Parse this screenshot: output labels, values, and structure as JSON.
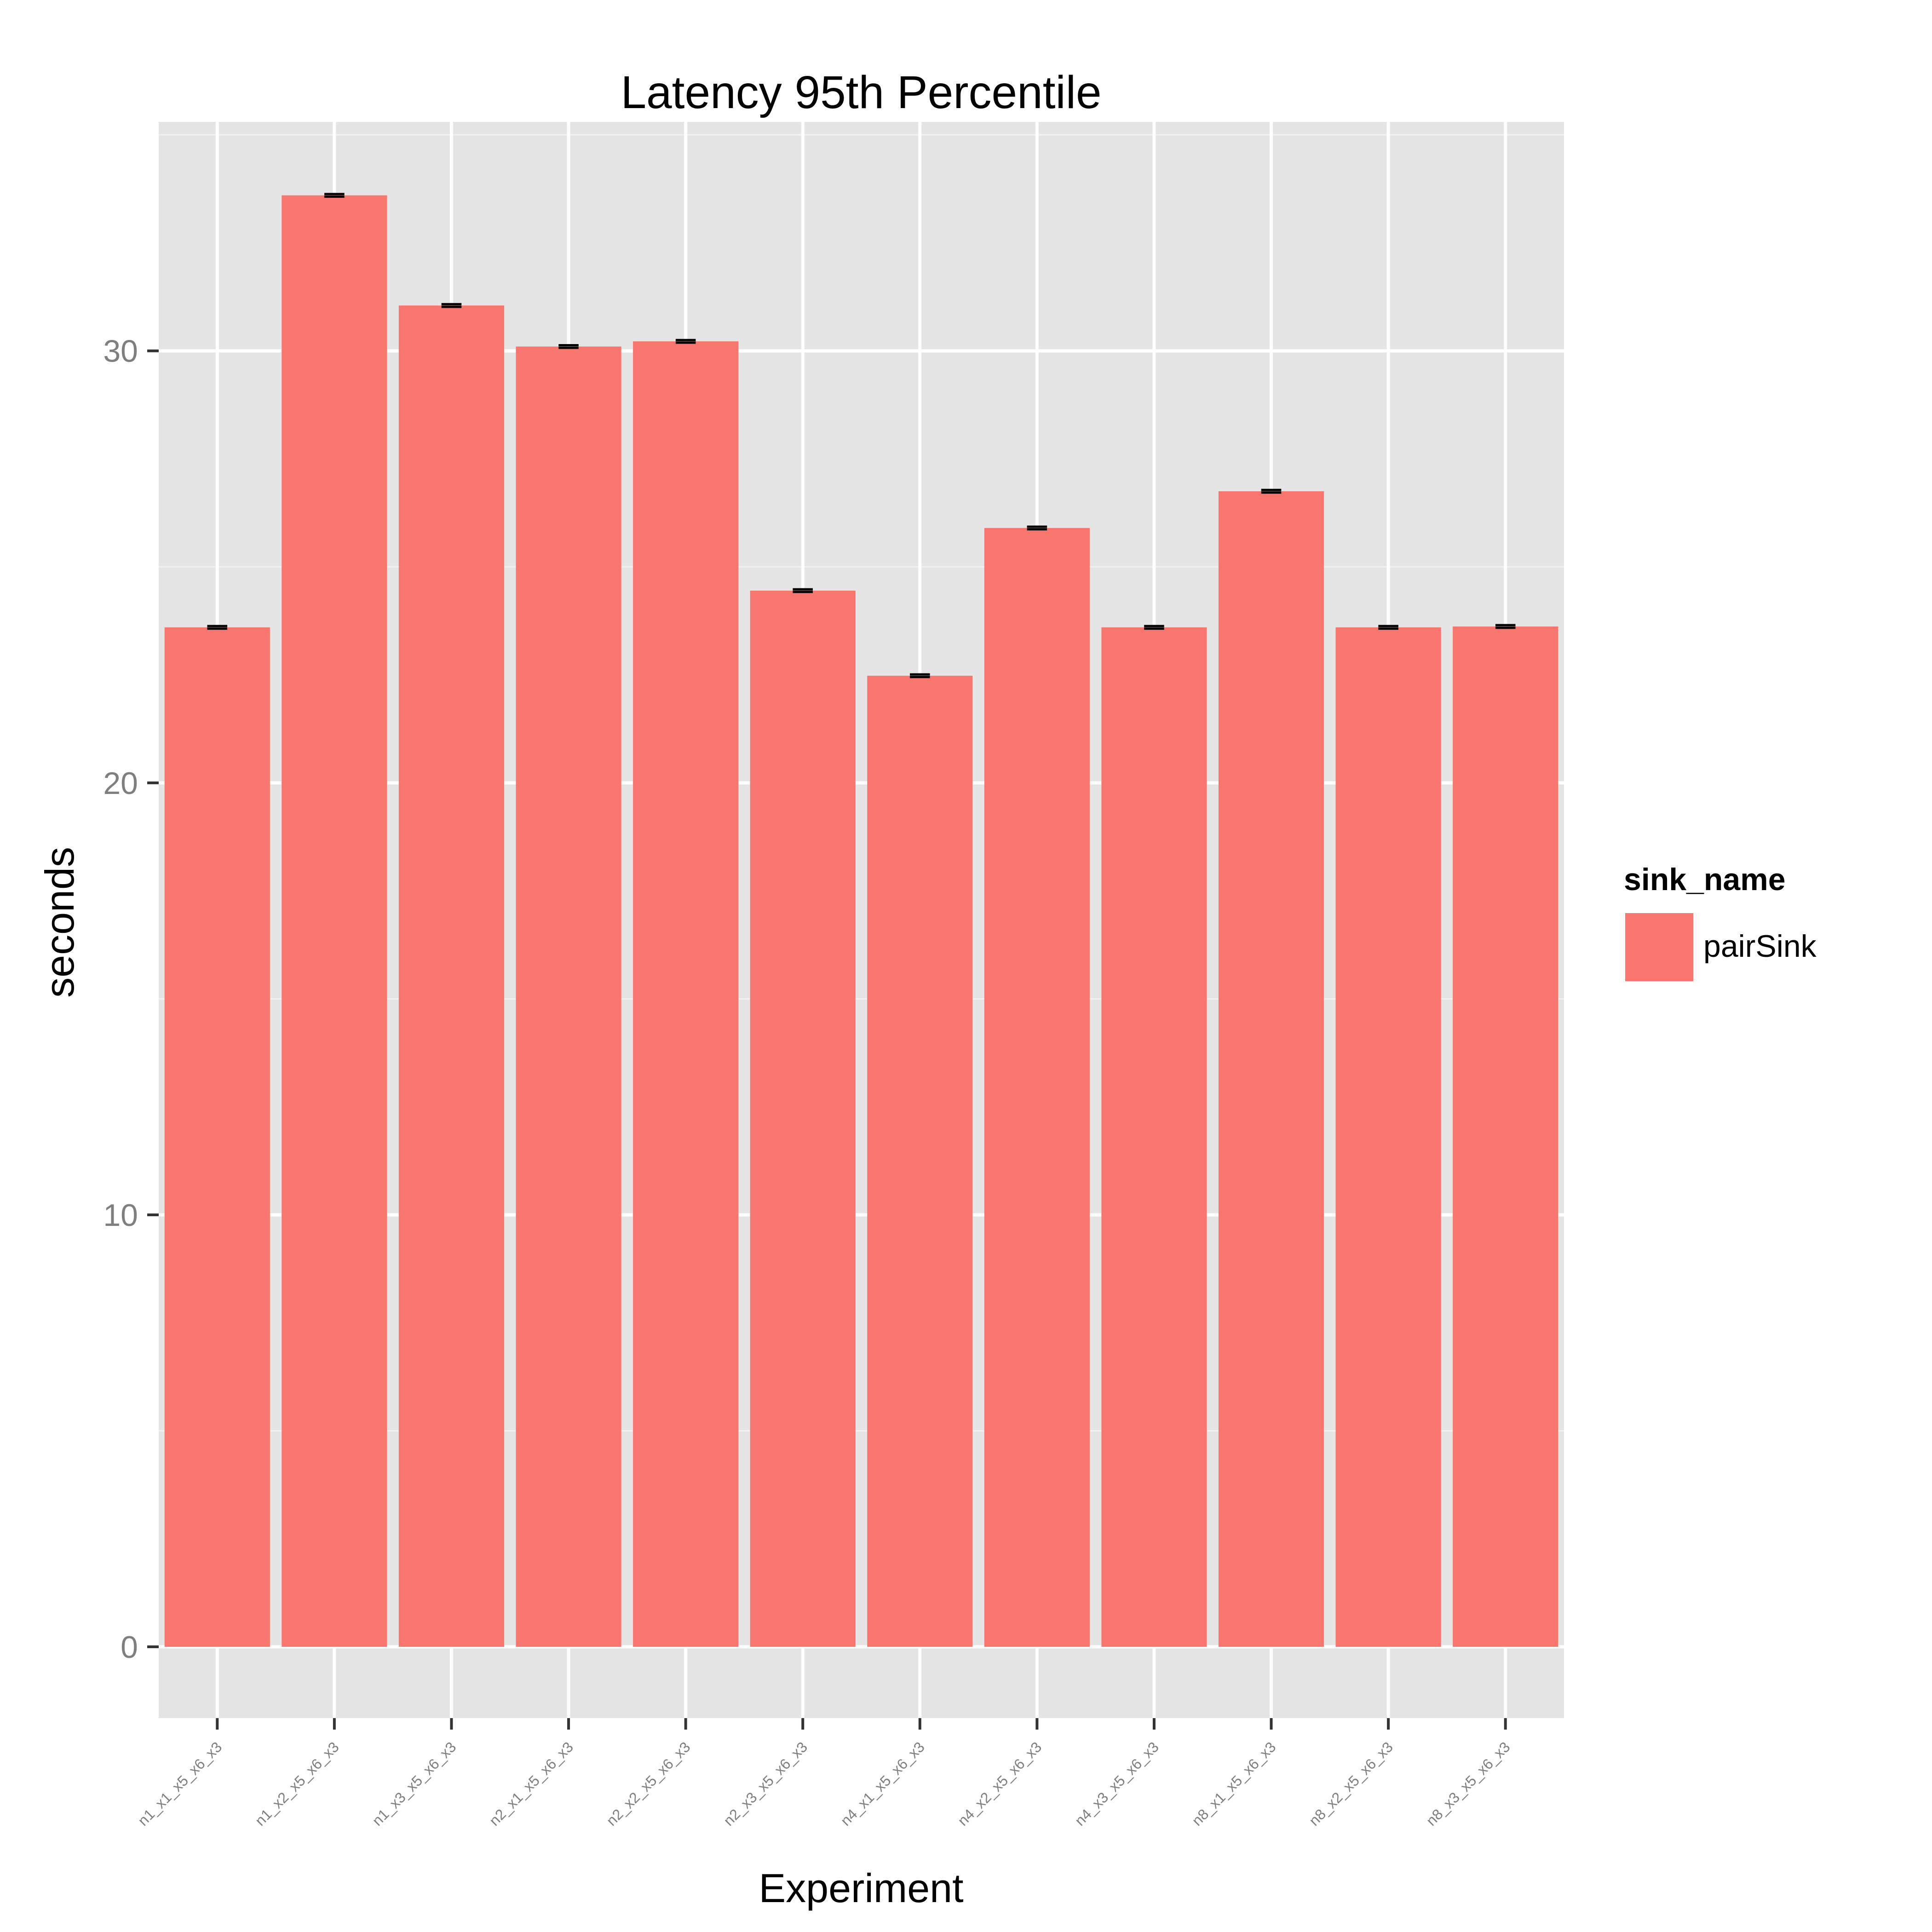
{
  "chart_data": {
    "type": "bar",
    "title": "Latency 95th Percentile",
    "xlabel": "Experiment",
    "ylabel": "seconds",
    "categories": [
      "n1_x1_x5_x6_x3",
      "n1_x2_x5_x6_x3",
      "n1_x3_x5_x6_x3",
      "n2_x1_x5_x6_x3",
      "n2_x2_x5_x6_x3",
      "n2_x3_x5_x6_x3",
      "n4_x1_x5_x6_x3",
      "n4_x2_x5_x6_x3",
      "n4_x3_x5_x6_x3",
      "n8_x1_x5_x6_x3",
      "n8_x2_x5_x6_x3",
      "n8_x3_x5_x6_x3"
    ],
    "series": [
      {
        "name": "pairSink",
        "values": [
          23.6,
          33.6,
          31.05,
          30.1,
          30.22,
          24.45,
          22.48,
          25.9,
          23.6,
          26.75,
          23.6,
          23.62
        ],
        "errors": [
          0.03,
          0.03,
          0.03,
          0.03,
          0.03,
          0.03,
          0.03,
          0.03,
          0.03,
          0.03,
          0.03,
          0.03
        ]
      }
    ],
    "yticks": [
      0,
      10,
      20,
      30
    ],
    "ylim": [
      -1.65,
      35.3
    ],
    "grid": true,
    "legend": {
      "title": "sink_name",
      "position": "right"
    },
    "colors": {
      "bar": "#F8766D",
      "panel": "#E5E5E5",
      "grid": "#FFFFFF",
      "minor_grid": "#F2F2F2",
      "errorbar": "#000000"
    }
  }
}
